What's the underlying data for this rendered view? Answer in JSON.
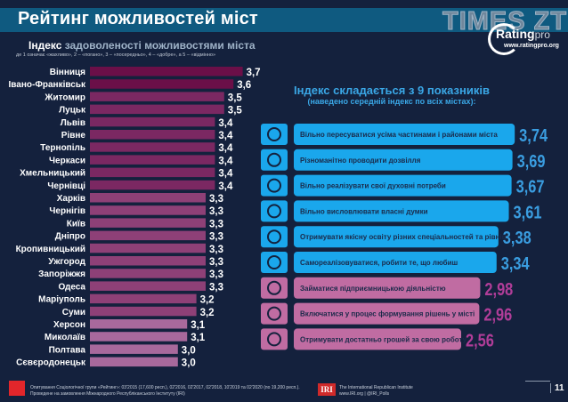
{
  "header": {
    "title": "Рейтинг можливостей міст",
    "watermark": "TIMES ZT",
    "logo_main": "Rating",
    "logo_suffix": "pro",
    "site": "www.ratingpro.org"
  },
  "chart_data": [
    {
      "type": "bar",
      "orientation": "horizontal",
      "title_bold": "Індекс",
      "title": "задоволеності можливостями міста",
      "subtitle": "де 1 означає «жахливо», 2 – «погано», 3 – «посередньо», 4 – «добре», а 5 – «відмінно»",
      "categories": [
        "Вінниця",
        "Івано-Франківськ",
        "Житомир",
        "Луцьк",
        "Львів",
        "Рівне",
        "Тернопіль",
        "Черкаси",
        "Хмельницький",
        "Чернівці",
        "Харків",
        "Чернігів",
        "Київ",
        "Дніпро",
        "Кропивницький",
        "Ужгород",
        "Запоріжжя",
        "Одеса",
        "Маріуполь",
        "Суми",
        "Херсон",
        "Миколаїв",
        "Полтава",
        "Сєвєродонецьк"
      ],
      "values": [
        3.7,
        3.6,
        3.5,
        3.5,
        3.4,
        3.4,
        3.4,
        3.4,
        3.4,
        3.4,
        3.3,
        3.3,
        3.3,
        3.3,
        3.3,
        3.3,
        3.3,
        3.3,
        3.2,
        3.2,
        3.1,
        3.1,
        3.0,
        3.0
      ],
      "value_labels": [
        "3,7",
        "3,6",
        "3,5",
        "3,5",
        "3,4",
        "3,4",
        "3,4",
        "3,4",
        "3,4",
        "3,4",
        "3,3",
        "3,3",
        "3,3",
        "3,3",
        "3,3",
        "3,3",
        "3,3",
        "3,3",
        "3,2",
        "3,2",
        "3,1",
        "3,1",
        "3,0",
        "3,0"
      ],
      "bar_colors": [
        "#6b0f48",
        "#6b0f48",
        "#7b2862",
        "#7b2862",
        "#7b2862",
        "#7b2862",
        "#7b2862",
        "#7b2862",
        "#7b2862",
        "#7b2862",
        "#8e4077",
        "#8e4077",
        "#8e4077",
        "#8e4077",
        "#8e4077",
        "#8e4077",
        "#8e4077",
        "#8e4077",
        "#8e4077",
        "#8e4077",
        "#a8699c",
        "#a8699c",
        "#a8699c",
        "#a8699c"
      ]
    },
    {
      "type": "bar",
      "orientation": "horizontal",
      "title": "Індекс складається з 9 показників",
      "subtitle": "(наведено середній індекс по всіх містах):",
      "categories": [
        "Вільно пересуватися усіма частинами і районами міста",
        "Різноманітно проводити дозвілля",
        "Вільно реалізувати свої духовні потреби",
        "Вільно висловлювати власні думки",
        "Отримувати якісну освіту різних спеціальностей та рівнів",
        "Самореалізовуватися, робити те, що любиш",
        "Займатися підприємницькою діяльністю",
        "Включатися у процес формування рішень у місті",
        "Отримувати достатньо грошей за свою роботу"
      ],
      "values": [
        3.74,
        3.69,
        3.67,
        3.61,
        3.38,
        3.34,
        2.98,
        2.96,
        2.56
      ],
      "value_labels": [
        "3,74",
        "3,69",
        "3,67",
        "3,61",
        "3,38",
        "3,34",
        "2,98",
        "2,96",
        "2,56"
      ],
      "icons": [
        "transport-icon",
        "family-icon",
        "prayer-icon",
        "speech-people-icon",
        "graduation-cap-icon",
        "celebrating-people-icon",
        "business-icon",
        "gear-people-icon",
        "coins-icon"
      ],
      "bar_colors": [
        "#1aa7ec",
        "#1aa7ec",
        "#1aa7ec",
        "#1aa7ec",
        "#1aa7ec",
        "#1aa7ec",
        "#c06ca2",
        "#c06ca2",
        "#c06ca2"
      ],
      "value_colors": [
        "#3a9de0",
        "#3a9de0",
        "#3a9de0",
        "#3a9de0",
        "#3a9de0",
        "#3a9de0",
        "#b03d98",
        "#b03d98",
        "#b03d98"
      ]
    }
  ],
  "footer": {
    "line1": "Опитування Соціологічної групи «Рейтинг»: 03'2015 (17,600 респ.), 02'2016, 02'2017, 02'2018, 10'2019 та 02'2020 (по 19,200 респ.).",
    "line2": "Проведене на замовлення Міжнародного Республіканського Інституту (IRI)",
    "iri_logo": "IRI",
    "iri_name": "The International Republican Institute",
    "iri_contacts": "www.IRI.org | @IRI_Polls",
    "page_number": "11"
  }
}
